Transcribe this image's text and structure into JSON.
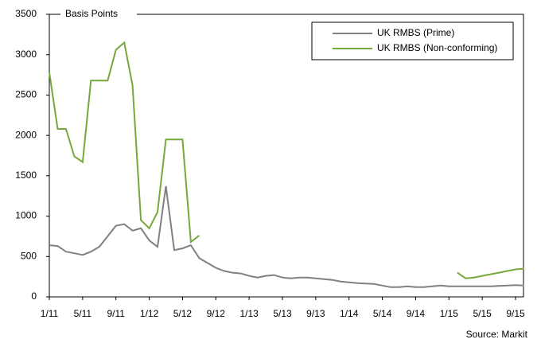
{
  "chart_data": {
    "type": "line",
    "y_label": "Basis Points",
    "source": "Source: Markit",
    "x": [
      "1/11",
      "2/11",
      "3/11",
      "4/11",
      "5/11",
      "6/11",
      "7/11",
      "8/11",
      "9/11",
      "10/11",
      "11/11",
      "12/11",
      "1/12",
      "2/12",
      "3/12",
      "4/12",
      "5/12",
      "6/12",
      "7/12",
      "8/12",
      "9/12",
      "10/12",
      "11/12",
      "12/12",
      "1/13",
      "2/13",
      "3/13",
      "4/13",
      "5/13",
      "6/13",
      "7/13",
      "8/13",
      "9/13",
      "10/13",
      "11/13",
      "12/13",
      "1/14",
      "2/14",
      "3/14",
      "4/14",
      "5/14",
      "6/14",
      "7/14",
      "8/14",
      "9/14",
      "10/14",
      "11/14",
      "12/14",
      "1/15",
      "2/15",
      "3/15",
      "4/15",
      "5/15",
      "6/15",
      "7/15",
      "8/15",
      "9/15",
      "10/15"
    ],
    "xticks": [
      "1/11",
      "5/11",
      "9/11",
      "1/12",
      "5/12",
      "9/12",
      "1/13",
      "5/13",
      "9/13",
      "1/14",
      "5/14",
      "9/14",
      "1/15",
      "5/15",
      "9/15"
    ],
    "ylim": [
      0,
      3500
    ],
    "yticks": [
      0,
      500,
      1000,
      1500,
      2000,
      2500,
      3000,
      3500
    ],
    "legend": "upper right",
    "series": [
      {
        "name": "UK RMBS (Prime)",
        "color": "#808080",
        "values": [
          640,
          630,
          560,
          540,
          520,
          560,
          620,
          750,
          880,
          900,
          820,
          850,
          700,
          620,
          1370,
          580,
          600,
          640,
          480,
          420,
          360,
          320,
          300,
          290,
          260,
          240,
          260,
          270,
          240,
          230,
          240,
          240,
          230,
          220,
          210,
          190,
          180,
          170,
          165,
          160,
          140,
          120,
          120,
          130,
          120,
          120,
          130,
          140,
          130,
          130,
          130,
          130,
          130,
          130,
          135,
          140,
          145,
          140
        ]
      },
      {
        "name": "UK RMBS (Non-conforming)",
        "color": "#77a83a",
        "values": [
          2780,
          2080,
          2080,
          1740,
          1670,
          2680,
          2680,
          2680,
          3060,
          3150,
          2620,
          950,
          850,
          1050,
          1950,
          1950,
          1950,
          680,
          760,
          null,
          null,
          null,
          null,
          null,
          null,
          null,
          null,
          null,
          null,
          null,
          null,
          null,
          null,
          null,
          null,
          null,
          null,
          null,
          null,
          null,
          null,
          null,
          null,
          null,
          null,
          null,
          null,
          null,
          null,
          300,
          230,
          240,
          260,
          280,
          300,
          320,
          340,
          350
        ]
      }
    ]
  }
}
